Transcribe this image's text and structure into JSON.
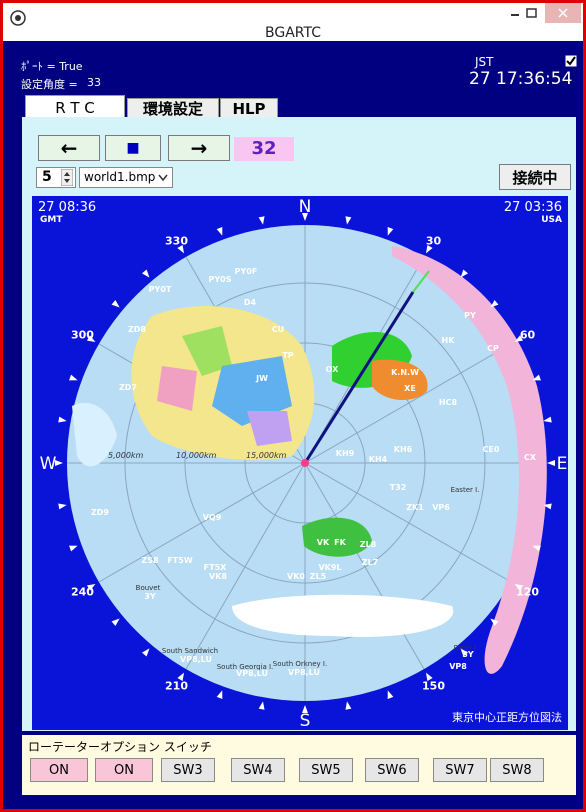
{
  "window": {
    "title": "BGARTC"
  },
  "status": {
    "port": "ﾎﾟｰﾄ = True",
    "angle_label": "設定角度 =",
    "angle": "33",
    "tz": "JST",
    "clock": "27 17:36:54"
  },
  "tabs": [
    "R T C",
    "環境設定",
    "HLP"
  ],
  "controls": {
    "left": "←",
    "stop": "■",
    "right": "→",
    "heading": "32",
    "step": "5",
    "map_file": "world1.bmp",
    "connection": "接続中"
  },
  "map": {
    "gmt_time": "27 08:36",
    "gmt_label": "GMT",
    "usa_time": "27 03:36",
    "usa_label": "USA",
    "bearings": [
      "N",
      "30",
      "60",
      "E",
      "120",
      "150",
      "S",
      "210",
      "240",
      "W",
      "300",
      "330"
    ],
    "distances": [
      "5,000km",
      "10,000km",
      "15,000km"
    ],
    "projection": "東京中心正距方位図法",
    "places": [
      "PY0S",
      "PY0F",
      "D4",
      "PY0T",
      "CU",
      "ZD8",
      "TP",
      "JW",
      "OX",
      "K.N.W",
      "HK",
      "PY",
      "CP",
      "XE",
      "HC8",
      "KH6",
      "KH4",
      "CE0",
      "CX",
      "Easter I.",
      "VP6",
      "ZK1",
      "KH9",
      "T32",
      "VK",
      "FK",
      "ZL8",
      "VK9L",
      "ZL7",
      "ZL5",
      "VK0",
      "FT5X",
      "FT5W",
      "ZS8",
      "VK8",
      "VQ9",
      "ZD9",
      "Bouvet",
      "3Y",
      "South Sandwich",
      "VP8,LU",
      "South Georgia I.",
      "VP8,LU",
      "South Orkney I.",
      "VP8,LU",
      "Peter I.",
      "3Y",
      "VP8",
      "ZD7"
    ]
  },
  "options": {
    "title": "ローテーターオプション スイッチ",
    "switches": [
      "ON",
      "ON",
      "SW3",
      "SW4",
      "SW5",
      "SW6",
      "SW7",
      "SW8"
    ]
  }
}
